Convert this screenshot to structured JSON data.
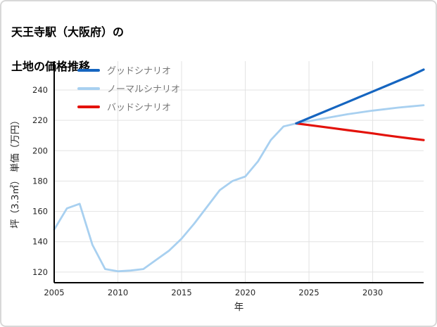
{
  "page": {
    "title_line1": "天王寺駅（大阪府）の",
    "title_line2": "土地の価格推移"
  },
  "chart_data": {
    "type": "line",
    "title": "天王寺駅（大阪府）の土地の価格推移",
    "xlabel": "年",
    "ylabel": "坪（3.3㎡） 単価（万円）",
    "xlim": [
      2005,
      2034
    ],
    "ylim": [
      113,
      259
    ],
    "xticks": [
      2005,
      2010,
      2015,
      2020,
      2025,
      2030
    ],
    "yticks": [
      120,
      140,
      160,
      180,
      200,
      220,
      240
    ],
    "grid": true,
    "grid_color": "#e3e3e3",
    "axis_color": "#000000",
    "legend_position": "upper left",
    "series": [
      {
        "name": "グッドシナリオ",
        "color": "#1565c0",
        "width": 3.2,
        "zorder": 3,
        "x": [
          2024,
          2025,
          2026,
          2027,
          2028,
          2029,
          2030,
          2031,
          2032,
          2033,
          2034
        ],
        "y": [
          218,
          221.5,
          225,
          228.5,
          232,
          235.5,
          239,
          242.5,
          246,
          249.5,
          253.5
        ]
      },
      {
        "name": "ノーマルシナリオ",
        "color": "#a8d0f0",
        "width": 2.8,
        "zorder": 1,
        "x": [
          2005,
          2006,
          2007,
          2008,
          2009,
          2010,
          2011,
          2012,
          2013,
          2014,
          2015,
          2016,
          2017,
          2018,
          2019,
          2020,
          2021,
          2022,
          2023,
          2024,
          2025,
          2026,
          2027,
          2028,
          2029,
          2030,
          2031,
          2032,
          2033,
          2034
        ],
        "y": [
          148,
          162,
          165,
          138,
          122,
          120.5,
          121,
          122,
          128,
          134,
          142,
          152,
          163,
          174,
          180,
          183,
          193,
          207,
          216,
          218,
          219.5,
          221,
          222.5,
          224,
          225.2,
          226.4,
          227.4,
          228.4,
          229.2,
          230
        ]
      },
      {
        "name": "バッドシナリオ",
        "color": "#e3120b",
        "width": 3.2,
        "zorder": 2,
        "x": [
          2024,
          2025,
          2026,
          2027,
          2028,
          2029,
          2030,
          2031,
          2032,
          2033,
          2034
        ],
        "y": [
          218,
          216.9,
          215.8,
          214.7,
          213.6,
          212.5,
          211.4,
          210.2,
          209.1,
          208,
          207
        ]
      }
    ]
  }
}
